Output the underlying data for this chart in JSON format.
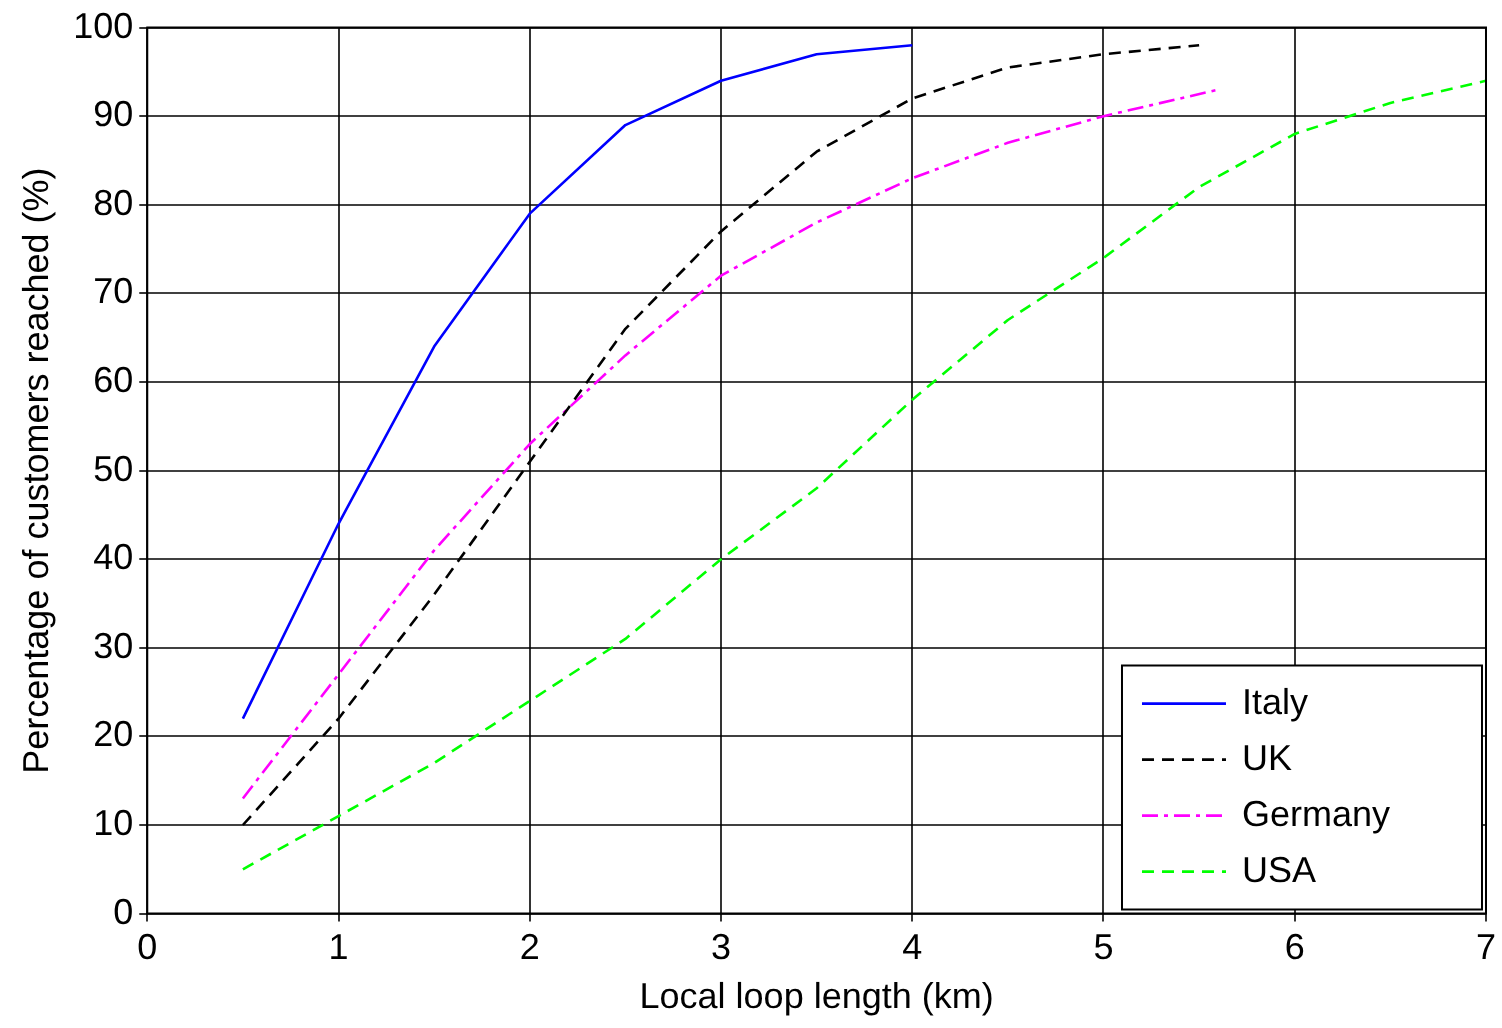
{
  "chart_data": {
    "type": "line",
    "xlabel": "Local loop length (km)",
    "ylabel": "Percentage of customers reached (%)",
    "xlim": [
      0,
      7
    ],
    "xticks": [
      0,
      1,
      2,
      3,
      4,
      5,
      6,
      7
    ],
    "ylim": [
      0,
      100
    ],
    "yticks": [
      0,
      10,
      20,
      30,
      40,
      50,
      60,
      70,
      80,
      90,
      100
    ],
    "grid": true,
    "legend": "bottom right",
    "marker": "none",
    "series": [
      {
        "name": "Italy",
        "color": "#0000ff",
        "line_style": "solid",
        "x": [
          0.5,
          1,
          1.5,
          2,
          2.5,
          3,
          3.5,
          4
        ],
        "values": [
          22,
          44,
          64,
          79,
          89,
          94,
          97,
          98
        ]
      },
      {
        "name": "UK",
        "color": "#000000",
        "line_style": "dashed",
        "x": [
          0.5,
          1,
          1.5,
          2,
          2.5,
          3,
          3.5,
          4,
          4.5,
          5,
          5.5
        ],
        "values": [
          10,
          22,
          36,
          51,
          66,
          77,
          86,
          92,
          95.5,
          97,
          98
        ]
      },
      {
        "name": "Germany",
        "color": "#ff00ff",
        "line_style": "dashdot",
        "x": [
          0.5,
          1,
          1.5,
          2,
          2.5,
          3,
          3.5,
          4,
          4.5,
          5,
          5.6
        ],
        "values": [
          13,
          27,
          41,
          53,
          63,
          72,
          78,
          83,
          87,
          90,
          93
        ]
      },
      {
        "name": "USA",
        "color": "#00ff00",
        "line_style": "dashed",
        "x": [
          0.5,
          1,
          1.5,
          2,
          2.5,
          3,
          3.5,
          4,
          4.5,
          5,
          5.5,
          6,
          6.5,
          7
        ],
        "values": [
          5,
          11,
          17,
          24,
          31,
          40,
          48,
          58,
          67,
          74,
          82,
          88,
          91.5,
          94
        ]
      }
    ]
  }
}
